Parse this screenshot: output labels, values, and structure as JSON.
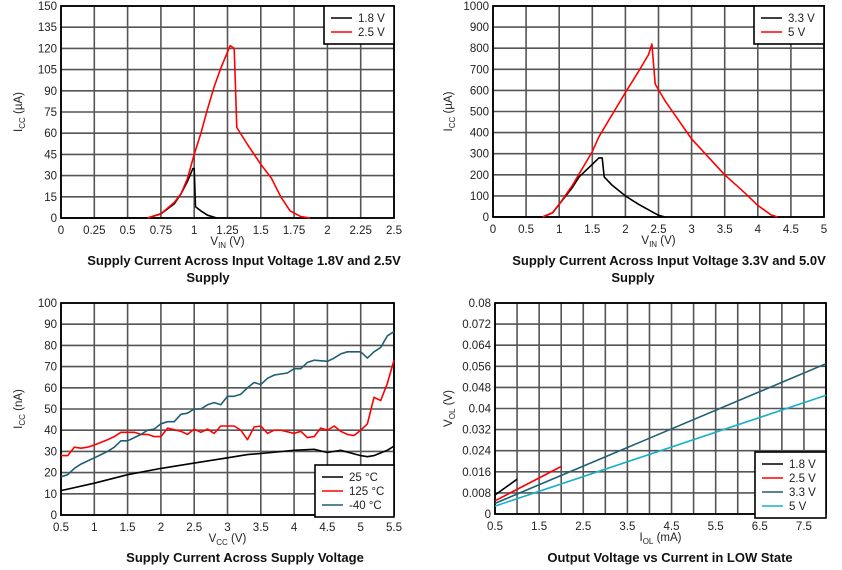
{
  "colors": {
    "black": "#000000",
    "red": "#ff0000",
    "teal": "#1f5f73",
    "cyan": "#1ab0c8"
  },
  "chart_data": [
    {
      "type": "line",
      "title": [
        "Supply Current Across Input Voltage 1.8V and 2.5V",
        "Supply"
      ],
      "xlabel": {
        "main": "V",
        "sub": "IN",
        "unit": " (V)"
      },
      "ylabel": {
        "main": "I",
        "sub": "CC",
        "unit": " (µA)"
      },
      "xlim": [
        0,
        2.5
      ],
      "ylim": [
        0,
        150
      ],
      "xticks": [
        "0",
        "0.25",
        "0.5",
        "0.75",
        "1",
        "1.25",
        "1.5",
        "1.75",
        "2",
        "2.25",
        "2.5"
      ],
      "yticks": [
        "0",
        "15",
        "30",
        "45",
        "60",
        "75",
        "90",
        "105",
        "120",
        "135",
        "150"
      ],
      "grid": true,
      "legend": "top-right",
      "series": [
        {
          "name": "1.8 V",
          "color": "#000000",
          "x": [
            0,
            0.65,
            0.75,
            0.85,
            0.9,
            0.95,
            0.99,
            1.0,
            1.01,
            1.05,
            1.1,
            1.17
          ],
          "y": [
            0,
            0,
            3,
            10,
            17,
            26,
            35,
            35,
            8,
            5,
            2,
            0
          ]
        },
        {
          "name": "2.5 V",
          "color": "#ff0000",
          "x": [
            0.65,
            0.75,
            0.85,
            0.9,
            0.95,
            1.0,
            1.05,
            1.1,
            1.15,
            1.2,
            1.27,
            1.3,
            1.32,
            1.4,
            1.5,
            1.58,
            1.65,
            1.72,
            1.8,
            1.87
          ],
          "y": [
            0,
            3,
            11,
            17,
            28,
            45,
            60,
            77,
            93,
            106,
            122,
            120,
            64,
            52,
            38,
            28,
            15,
            5,
            1,
            0
          ]
        }
      ]
    },
    {
      "type": "line",
      "title": [
        "Supply Current Across Input Voltage 3.3V and 5.0V",
        "Supply"
      ],
      "xlabel": {
        "main": "V",
        "sub": "IN",
        "unit": " (V)"
      },
      "ylabel": {
        "main": "I",
        "sub": "CC",
        "unit": " (µA)"
      },
      "xlim": [
        0,
        5
      ],
      "ylim": [
        0,
        1000
      ],
      "xticks": [
        "0",
        "0.5",
        "1",
        "1.5",
        "2",
        "2.5",
        "3",
        "3.5",
        "4",
        "4.5",
        "5"
      ],
      "yticks": [
        "0",
        "100",
        "200",
        "300",
        "400",
        "500",
        "600",
        "700",
        "800",
        "900",
        "1000"
      ],
      "grid": true,
      "legend": "top-right",
      "series": [
        {
          "name": "3.3 V",
          "color": "#000000",
          "x": [
            0,
            0.75,
            0.9,
            1.0,
            1.2,
            1.3,
            1.5,
            1.6,
            1.65,
            1.68,
            1.8,
            2.0,
            2.2,
            2.4,
            2.5,
            2.6
          ],
          "y": [
            0,
            0,
            20,
            60,
            140,
            190,
            250,
            280,
            280,
            190,
            150,
            100,
            60,
            25,
            8,
            0
          ]
        },
        {
          "name": "5 V",
          "color": "#ff0000",
          "x": [
            0.75,
            0.9,
            1.0,
            1.2,
            1.5,
            1.6,
            2.0,
            2.2,
            2.35,
            2.4,
            2.45,
            2.6,
            3.0,
            3.5,
            3.8,
            4.0,
            4.2,
            4.3
          ],
          "y": [
            0,
            20,
            60,
            150,
            310,
            380,
            590,
            690,
            770,
            820,
            630,
            550,
            370,
            200,
            115,
            55,
            10,
            0
          ]
        }
      ]
    },
    {
      "type": "line",
      "title": [
        "Supply Current Across Supply Voltage"
      ],
      "xlabel": {
        "main": "V",
        "sub": "CC",
        "unit": " (V)"
      },
      "ylabel": {
        "main": "I",
        "sub": "CC",
        "unit": " (nA)"
      },
      "xlim": [
        0.5,
        5.5
      ],
      "ylim": [
        0,
        100
      ],
      "xticks": [
        "0.5",
        "1",
        "1.5",
        "2",
        "2.5",
        "3",
        "3.5",
        "4",
        "4.5",
        "5",
        "5.5"
      ],
      "yticks": [
        "0",
        "10",
        "20",
        "30",
        "40",
        "50",
        "60",
        "70",
        "80",
        "90",
        "100"
      ],
      "grid": true,
      "legend": "bottom-right",
      "series": [
        {
          "name": "25 °C",
          "color": "#000000",
          "x": [
            0.5,
            1.0,
            1.5,
            2.0,
            2.5,
            3.0,
            3.3,
            3.5,
            4.0,
            4.3,
            4.5,
            4.7,
            5.0,
            5.1,
            5.2,
            5.4,
            5.5
          ],
          "y": [
            11.5,
            15,
            19,
            22,
            24.5,
            27,
            28.5,
            29,
            30.5,
            31,
            29.5,
            30.5,
            28,
            27.5,
            28,
            30.5,
            32.5
          ]
        },
        {
          "name": "125 °C",
          "color": "#ff0000",
          "x": [
            0.5,
            0.6,
            0.7,
            0.8,
            0.9,
            1.0,
            1.2,
            1.3,
            1.4,
            1.6,
            1.7,
            1.8,
            1.9,
            2.0,
            2.1,
            2.3,
            2.4,
            2.5,
            2.6,
            2.7,
            2.8,
            2.9,
            3.0,
            3.1,
            3.2,
            3.3,
            3.4,
            3.5,
            3.6,
            3.7,
            3.8,
            4.0,
            4.1,
            4.2,
            4.3,
            4.4,
            4.5,
            4.6,
            4.7,
            4.8,
            4.9,
            5.0,
            5.1,
            5.2,
            5.3,
            5.4,
            5.5
          ],
          "y": [
            28,
            28,
            32,
            31.5,
            32,
            33,
            35.5,
            37,
            39,
            39,
            38,
            38,
            37,
            37,
            41,
            39.5,
            38,
            40.5,
            39,
            40.5,
            38.5,
            42,
            42,
            42,
            40,
            35.5,
            41.5,
            42,
            38.5,
            40,
            40,
            38.5,
            39.5,
            36.5,
            37,
            41,
            40,
            42,
            39.5,
            38,
            37.5,
            40,
            43,
            55.5,
            54,
            62,
            73
          ]
        },
        {
          "name": "-40 °C",
          "color": "#1f5f73",
          "x": [
            0.5,
            0.6,
            0.7,
            0.8,
            1.0,
            1.1,
            1.2,
            1.3,
            1.4,
            1.5,
            1.6,
            1.7,
            1.8,
            1.9,
            2.0,
            2.1,
            2.2,
            2.3,
            2.4,
            2.5,
            2.6,
            2.7,
            2.8,
            2.9,
            3.0,
            3.1,
            3.2,
            3.3,
            3.4,
            3.5,
            3.6,
            3.7,
            3.8,
            3.9,
            4.0,
            4.1,
            4.2,
            4.3,
            4.5,
            4.6,
            4.7,
            4.8,
            4.9,
            5.0,
            5.1,
            5.2,
            5.3,
            5.4,
            5.5
          ],
          "y": [
            18,
            19,
            22,
            24,
            27,
            28.5,
            30,
            32,
            35,
            35,
            36.5,
            38,
            40,
            40.5,
            43,
            44,
            44,
            47.5,
            48,
            50,
            50,
            52,
            53,
            52,
            56,
            56,
            57,
            60,
            62.5,
            61.5,
            64.5,
            66,
            66.5,
            67,
            69,
            69,
            72,
            73,
            72.5,
            74,
            76,
            77,
            77,
            77,
            74,
            77,
            79,
            84.5,
            86.5
          ]
        }
      ]
    },
    {
      "type": "line",
      "title": [
        "Output Voltage vs Current in LOW State"
      ],
      "xlabel": {
        "main": "I",
        "sub": "OL",
        "unit": " (mA)"
      },
      "ylabel": {
        "main": "V",
        "sub": "OL",
        "unit": " (V)"
      },
      "xlim": [
        0.5,
        8
      ],
      "ylim": [
        0,
        0.08
      ],
      "xticks": [
        "0.5",
        "1.5",
        "2.5",
        "3.5",
        "4.5",
        "5.5",
        "6.5",
        "7.5"
      ],
      "yticks": [
        "0",
        "0.008",
        "0.016",
        "0.024",
        "0.032",
        "0.04",
        "0.048",
        "0.056",
        "0.064",
        "0.072",
        "0.08"
      ],
      "grid": true,
      "legend": "bottom-right",
      "series": [
        {
          "name": "1.8 V",
          "color": "#000000",
          "x": [
            0.5,
            1.0
          ],
          "y": [
            0.0072,
            0.0132
          ]
        },
        {
          "name": "2.5 V",
          "color": "#ff0000",
          "x": [
            0.5,
            2.0
          ],
          "y": [
            0.005,
            0.018
          ]
        },
        {
          "name": "3.3 V",
          "color": "#1f5f73",
          "x": [
            0.5,
            8.0
          ],
          "y": [
            0.004,
            0.057
          ]
        },
        {
          "name": "5 V",
          "color": "#1ab0c8",
          "x": [
            0.5,
            8.0
          ],
          "y": [
            0.003,
            0.045
          ]
        }
      ]
    }
  ]
}
